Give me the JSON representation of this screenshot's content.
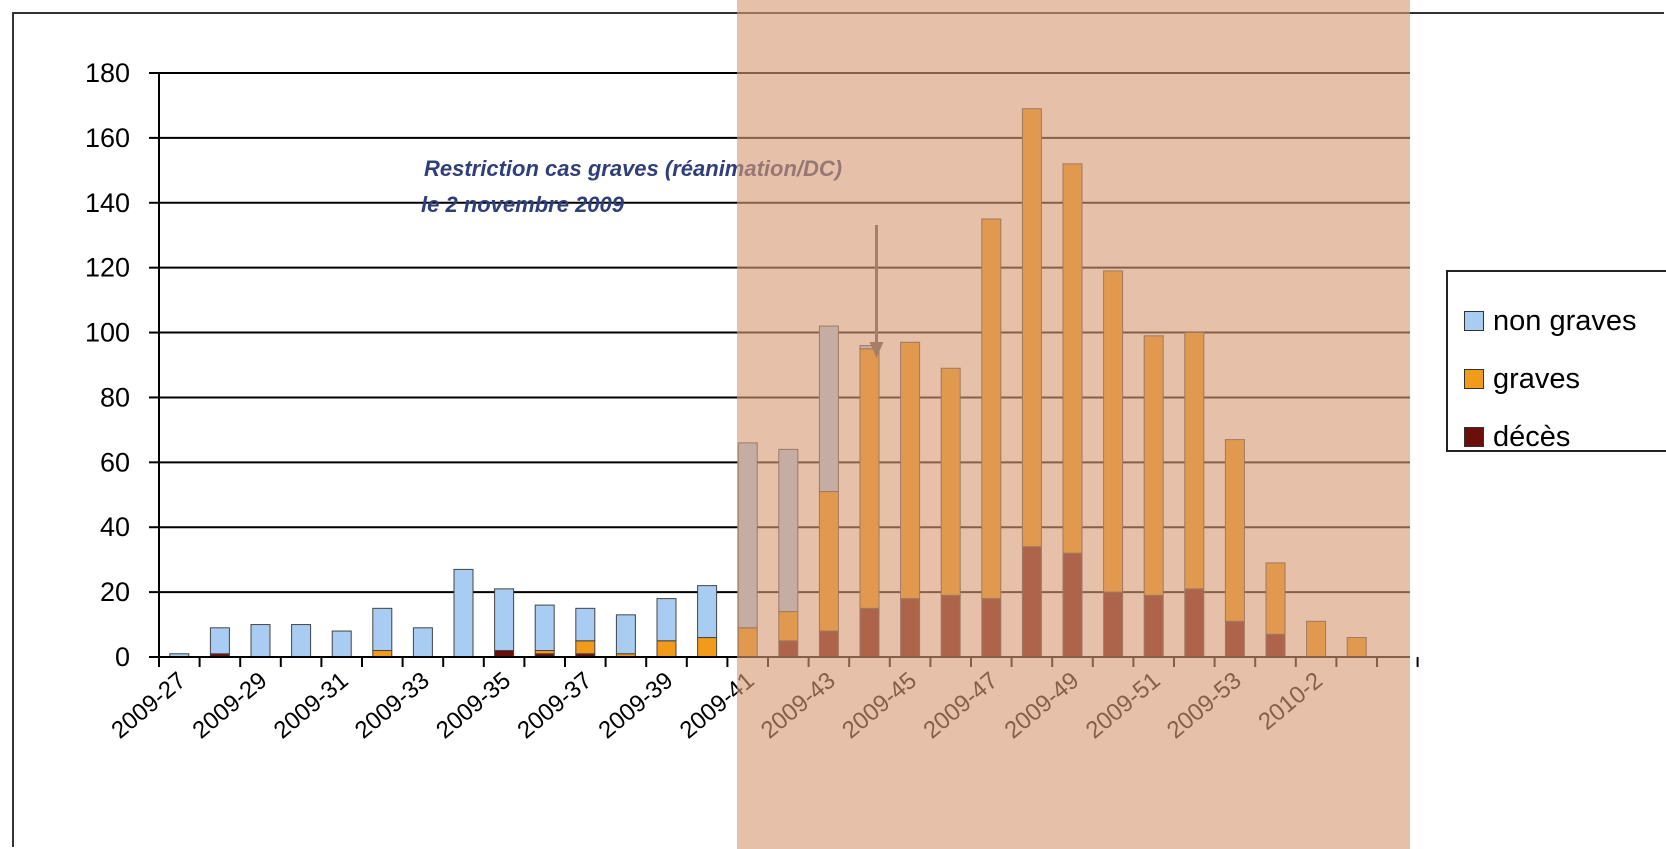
{
  "chart_data": {
    "type": "bar",
    "stacked": true,
    "title": "",
    "xlabel": "",
    "ylabel": "",
    "ylim": [
      0,
      180
    ],
    "yticks": [
      0,
      20,
      40,
      60,
      80,
      100,
      120,
      140,
      160,
      180
    ],
    "grid": true,
    "legend_position": "right",
    "categories": [
      "2009-27",
      "2009-28",
      "2009-29",
      "2009-30",
      "2009-31",
      "2009-32",
      "2009-33",
      "2009-34",
      "2009-35",
      "2009-36",
      "2009-37",
      "2009-38",
      "2009-39",
      "2009-40",
      "2009-41",
      "2009-42",
      "2009-43",
      "2009-44",
      "2009-45",
      "2009-46",
      "2009-47",
      "2009-48",
      "2009-49",
      "2009-50",
      "2009-51",
      "2009-52",
      "2009-53",
      "2010-1",
      "2010-2",
      "2010-3",
      "2010-4"
    ],
    "tick_labels": [
      "2009-27",
      "2009-29",
      "2009-31",
      "2009-33",
      "2009-35",
      "2009-37",
      "2009-39",
      "2009-41",
      "2009-43",
      "2009-45",
      "2009-47",
      "2009-49",
      "2009-51",
      "2009-53",
      "2010-2"
    ],
    "series": [
      {
        "name": "décès",
        "color": "#6b0f0a",
        "values": [
          0,
          1,
          0,
          0,
          0,
          0,
          0,
          0,
          2,
          1,
          1,
          0,
          0,
          0,
          0,
          5,
          8,
          15,
          18,
          19,
          18,
          34,
          32,
          20,
          19,
          21,
          11,
          7,
          0,
          0,
          0
        ]
      },
      {
        "name": "graves",
        "color": "#f29a1a",
        "values": [
          0,
          0,
          0,
          0,
          0,
          2,
          0,
          0,
          0,
          1,
          4,
          1,
          5,
          6,
          9,
          9,
          43,
          80,
          79,
          70,
          117,
          135,
          120,
          99,
          80,
          79,
          56,
          22,
          11,
          6,
          0
        ]
      },
      {
        "name": "non graves",
        "color": "#a9ccf2",
        "values": [
          1,
          8,
          10,
          10,
          8,
          13,
          9,
          27,
          19,
          14,
          10,
          12,
          13,
          16,
          57,
          50,
          51,
          1,
          0,
          0,
          0,
          0,
          0,
          0,
          0,
          0,
          0,
          0,
          0,
          0,
          0
        ]
      }
    ],
    "annotation": {
      "line1": "Restriction cas graves (réanimation/DC)",
      "line2": "le 2 novembre 2009",
      "arrow_category": "2009-44"
    }
  },
  "legend": {
    "items": [
      {
        "label": "non graves",
        "color": "#a9ccf2"
      },
      {
        "label": "graves",
        "color": "#f29a1a"
      },
      {
        "label": "décès",
        "color": "#6b0f0a"
      }
    ]
  },
  "highlight_color": "#d69a72"
}
